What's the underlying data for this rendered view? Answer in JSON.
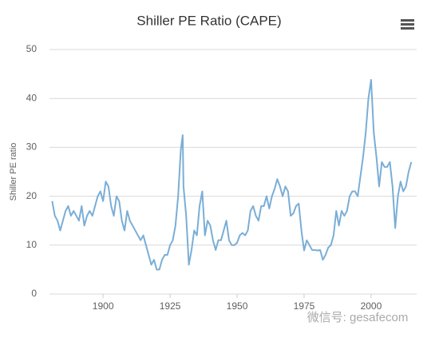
{
  "chart_data": {
    "type": "line",
    "title": "Shiller PE Ratio (CAPE)",
    "y_label": "Shiller PE ratio",
    "watermark": "微信号: gesafecom",
    "xlim": [
      1880,
      2017
    ],
    "xticks": [
      1900,
      1925,
      1950,
      1975,
      2000
    ],
    "ylim": [
      0,
      50
    ],
    "yticks": [
      0,
      10,
      20,
      30,
      40,
      50
    ],
    "grid": true,
    "x": [
      1881,
      1882,
      1883,
      1884,
      1885,
      1886,
      1887,
      1888,
      1889,
      1890,
      1891,
      1892,
      1893,
      1894,
      1895,
      1896,
      1897,
      1898,
      1899,
      1900,
      1901,
      1902,
      1903,
      1904,
      1905,
      1906,
      1907,
      1908,
      1909,
      1910,
      1911,
      1912,
      1913,
      1914,
      1915,
      1916,
      1917,
      1918,
      1919,
      1920,
      1921,
      1922,
      1923,
      1924,
      1925,
      1926,
      1927,
      1928,
      1929,
      1929.7,
      1930,
      1931,
      1932,
      1933,
      1934,
      1935,
      1936,
      1937,
      1938,
      1939,
      1940,
      1941,
      1942,
      1943,
      1944,
      1945,
      1946,
      1947,
      1948,
      1949,
      1950,
      1951,
      1952,
      1953,
      1954,
      1955,
      1956,
      1957,
      1958,
      1959,
      1960,
      1961,
      1962,
      1963,
      1964,
      1965,
      1966,
      1967,
      1968,
      1969,
      1970,
      1971,
      1972,
      1973,
      1974,
      1975,
      1976,
      1977,
      1978,
      1979,
      1980,
      1981,
      1982,
      1983,
      1984,
      1985,
      1986,
      1987,
      1988,
      1989,
      1990,
      1991,
      1992,
      1993,
      1994,
      1995,
      1996,
      1997,
      1998,
      1999,
      2000,
      2001,
      2002,
      2003,
      2004,
      2005,
      2006,
      2007,
      2008,
      2009,
      2010,
      2011,
      2012,
      2013,
      2014,
      2015
    ],
    "series": [
      {
        "name": "Shiller PE ratio",
        "color": "#7aaed6",
        "values": [
          19,
          16,
          15,
          13,
          15,
          17,
          18,
          16,
          17,
          16,
          15,
          18,
          14,
          16,
          17,
          16,
          18,
          20,
          21,
          19,
          23,
          22,
          18,
          16,
          20,
          19,
          15,
          13,
          17,
          15,
          14,
          13,
          12,
          11,
          12,
          10,
          8,
          6,
          7,
          5,
          5,
          7,
          8,
          8,
          10,
          11,
          14,
          20,
          29.5,
          32.5,
          22,
          16,
          6,
          9,
          13,
          12,
          18,
          21,
          12,
          15,
          14,
          11,
          9,
          11,
          11,
          13,
          15,
          11,
          10,
          10,
          10.5,
          12,
          12.5,
          12,
          13,
          17,
          18,
          16,
          15,
          18,
          18,
          20,
          17.5,
          20,
          21.5,
          23.5,
          22,
          20,
          22,
          21,
          16,
          16.5,
          18,
          18.5,
          13,
          8.9,
          11,
          10,
          9,
          9,
          8.9,
          9,
          7,
          8,
          9.5,
          10,
          12,
          17,
          14,
          17,
          16,
          17,
          20,
          21,
          21,
          20,
          24,
          28,
          33,
          40,
          43.8,
          33,
          28,
          22,
          27,
          26,
          26,
          27,
          22,
          13.5,
          20,
          23,
          21,
          22,
          25,
          27
        ]
      }
    ]
  }
}
